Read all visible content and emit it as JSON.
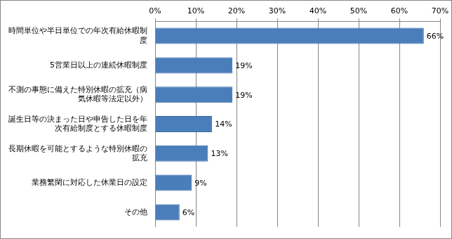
{
  "chart_data": {
    "type": "bar",
    "orientation": "horizontal",
    "categories": [
      "時間単位や半日単位での年次有給休暇制度",
      "5営業日以上の連続休暇制度",
      "不測の事態に備えた特別休暇の拡充（病気休暇等法定以外）",
      "誕生日等の決まった日や申告した日を年次有給制度とする休暇制度",
      "長期休暇を可能とするような特別休暇の拡充",
      "業務繁閑に対応した休業日の設定",
      "その他"
    ],
    "values": [
      66,
      19,
      19,
      14,
      13,
      9,
      6
    ],
    "value_labels": [
      "66%",
      "19%",
      "19%",
      "14%",
      "13%",
      "9%",
      "6%"
    ],
    "data_labels": true,
    "color": "#4a7ebb",
    "xlim": [
      0,
      70
    ],
    "xticks": [
      {
        "value": 0,
        "label": "0%"
      },
      {
        "value": 10,
        "label": "10%"
      },
      {
        "value": 20,
        "label": "20%"
      },
      {
        "value": 30,
        "label": "30%"
      },
      {
        "value": 40,
        "label": "40%"
      },
      {
        "value": 50,
        "label": "50%"
      },
      {
        "value": 60,
        "label": "60%"
      },
      {
        "value": 70,
        "label": "70%"
      }
    ],
    "grid": true
  }
}
